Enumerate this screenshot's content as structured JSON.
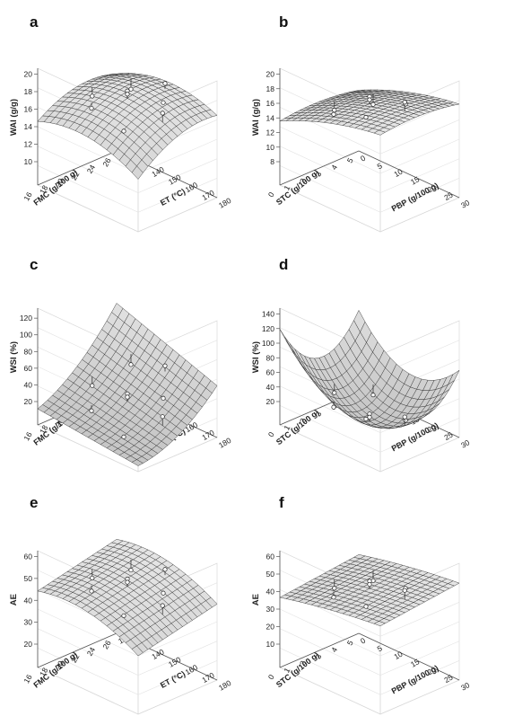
{
  "chart_data": [
    {
      "id": "a",
      "type": "surface3d",
      "panel_label": "a",
      "zlabel": "WAI (g/g)",
      "zticks": [
        10,
        12,
        14,
        16,
        18,
        20
      ],
      "zlim": [
        10,
        20
      ],
      "left_axis_label": "FMC (g/100 g)",
      "left_ticks": [
        "16",
        "18",
        "20",
        "22",
        "24",
        "26"
      ],
      "right_axis_label": "ET (°C)",
      "right_ticks": [
        "120",
        "130",
        "140",
        "150",
        "160",
        "170",
        "180"
      ],
      "surface": {
        "shape": "dome",
        "peak": 19.5,
        "low": 7.8
      },
      "points_count": 9
    },
    {
      "id": "b",
      "type": "surface3d",
      "panel_label": "b",
      "zlabel": "WAI (g/g)",
      "zticks": [
        8,
        10,
        12,
        14,
        16,
        18,
        20
      ],
      "zlim": [
        8,
        20
      ],
      "left_axis_label": "STC (g/100 g)",
      "left_ticks": [
        "0",
        "1",
        "2",
        "3",
        "4",
        "5"
      ],
      "right_axis_label": "PBP (g/100 g)",
      "right_ticks": [
        "0",
        "5",
        "10",
        "15",
        "20",
        "25",
        "30"
      ],
      "surface": {
        "shape": "ridge",
        "peak": 19.0,
        "low": 11.0
      },
      "points_count": 8
    },
    {
      "id": "c",
      "type": "surface3d",
      "panel_label": "c",
      "zlabel": "WSI (%)",
      "zticks": [
        20,
        40,
        60,
        80,
        100,
        120
      ],
      "zlim": [
        20,
        125
      ],
      "left_axis_label": "FMC (g/100 g)",
      "left_ticks": [
        "16",
        "18",
        "20",
        "22",
        "24",
        "26"
      ],
      "right_axis_label": "ET (°C)",
      "right_ticks": [
        "120",
        "130",
        "140",
        "150",
        "160",
        "170",
        "180"
      ],
      "surface": {
        "shape": "slope",
        "peak": 122,
        "low": 25
      },
      "points_count": 9
    },
    {
      "id": "d",
      "type": "surface3d",
      "panel_label": "d",
      "zlabel": "WSI (%)",
      "zticks": [
        20,
        40,
        60,
        80,
        100,
        120,
        140
      ],
      "zlim": [
        20,
        140
      ],
      "left_axis_label": "STC (g/100 g)",
      "left_ticks": [
        "0",
        "1",
        "2",
        "3",
        "4",
        "5"
      ],
      "right_axis_label": "PBP (g/100 g)",
      "right_ticks": [
        "0",
        "5",
        "10",
        "15",
        "20",
        "25",
        "30"
      ],
      "surface": {
        "shape": "bowl",
        "peak": 140,
        "low": 30
      },
      "points_count": 8
    },
    {
      "id": "e",
      "type": "surface3d",
      "panel_label": "e",
      "zlabel": "AE",
      "zticks": [
        20,
        30,
        40,
        50,
        60
      ],
      "zlim": [
        20,
        60
      ],
      "left_axis_label": "FMC (g/100 g)",
      "left_ticks": [
        "16",
        "18",
        "20",
        "22",
        "24",
        "26"
      ],
      "right_axis_label": "ET (°C)",
      "right_ticks": [
        "120",
        "130",
        "140",
        "150",
        "160",
        "170",
        "180"
      ],
      "surface": {
        "shape": "tilt-dome",
        "peak": 53,
        "low": 25
      },
      "points_count": 9
    },
    {
      "id": "f",
      "type": "surface3d",
      "panel_label": "f",
      "zlabel": "AE",
      "zticks": [
        10,
        20,
        30,
        40,
        50,
        60
      ],
      "zlim": [
        10,
        60
      ],
      "left_axis_label": "STC (g/100 g)",
      "left_ticks": [
        "0",
        "1",
        "2",
        "3",
        "4",
        "5"
      ],
      "right_axis_label": "PBP (g/100 g)",
      "right_ticks": [
        "0",
        "5",
        "10",
        "15",
        "20",
        "25",
        "30"
      ],
      "surface": {
        "shape": "plane",
        "peak": 58,
        "low": 38
      },
      "points_count": 8
    }
  ]
}
